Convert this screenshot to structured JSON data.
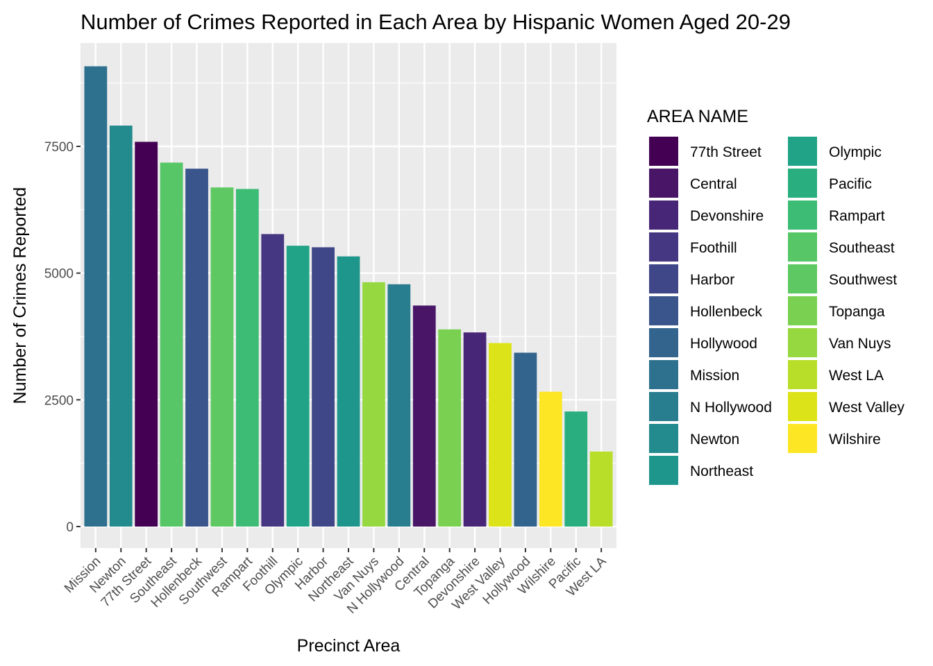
{
  "chart_data": {
    "type": "bar",
    "title": "Number of Crimes Reported in Each Area by Hispanic Women Aged 20-29",
    "xlabel": "Precinct Area",
    "ylabel": "Number of Crimes Reported",
    "ylim": [
      0,
      9600
    ],
    "yticks": [
      0,
      2500,
      5000,
      7500
    ],
    "grid": true,
    "legend_position": "right",
    "legend_title": "AREA NAME",
    "categories": [
      "Mission",
      "Newton",
      "77th Street",
      "Southeast",
      "Hollenbeck",
      "Southwest",
      "Rampart",
      "Foothill",
      "Olympic",
      "Harbor",
      "Northeast",
      "Van Nuys",
      "N Hollywood",
      "Central",
      "Topanga",
      "Devonshire",
      "West Valley",
      "Hollywood",
      "Wilshire",
      "Pacific",
      "West LA"
    ],
    "values": [
      9080,
      7910,
      7590,
      7180,
      7060,
      6690,
      6660,
      5770,
      5540,
      5510,
      5330,
      4820,
      4780,
      4360,
      3890,
      3830,
      3620,
      3430,
      2660,
      2270,
      1480
    ],
    "legend_entries": [
      "77th Street",
      "Central",
      "Devonshire",
      "Foothill",
      "Harbor",
      "Hollenbeck",
      "Hollywood",
      "Mission",
      "N Hollywood",
      "Newton",
      "Northeast",
      "Olympic",
      "Pacific",
      "Rampart",
      "Southeast",
      "Southwest",
      "Topanga",
      "Van Nuys",
      "West LA",
      "West Valley",
      "Wilshire"
    ],
    "colors": {
      "77th Street": "#440154",
      "Central": "#481567",
      "Devonshire": "#482677",
      "Foothill": "#453781",
      "Harbor": "#3f4788",
      "Hollenbeck": "#39558c",
      "Hollywood": "#32648e",
      "Mission": "#2d718e",
      "N Hollywood": "#287d8e",
      "Newton": "#238a8d",
      "Northeast": "#1f968b",
      "Olympic": "#20a386",
      "Pacific": "#29af7f",
      "Rampart": "#3cbc75",
      "Southeast": "#56c667",
      "Southwest": "#5ec962",
      "Topanga": "#7ad151",
      "Van Nuys": "#95d840",
      "West LA": "#b8de29",
      "West Valley": "#dce318",
      "Wilshire": "#fde725"
    },
    "panel_background": "#ebebeb",
    "grid_color": "#ffffff"
  }
}
